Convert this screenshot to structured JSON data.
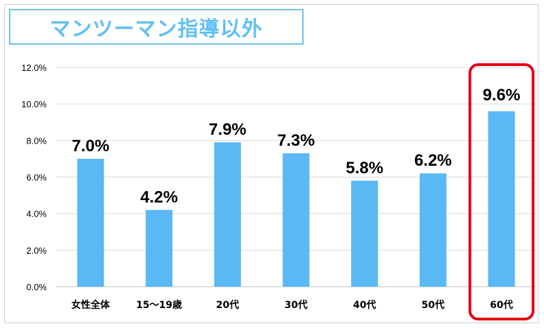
{
  "title": "マンツーマン指導以外",
  "chart_data": {
    "type": "bar",
    "categories": [
      "女性全体",
      "15～19歳",
      "20代",
      "30代",
      "40代",
      "50代",
      "60代"
    ],
    "values": [
      7.0,
      4.2,
      7.9,
      7.3,
      5.8,
      6.2,
      9.6
    ],
    "data_labels": [
      "7.0%",
      "4.2%",
      "7.9%",
      "7.3%",
      "5.8%",
      "6.2%",
      "9.6%"
    ],
    "y_ticks": [
      "0.0%",
      "2.0%",
      "4.0%",
      "6.0%",
      "8.0%",
      "10.0%",
      "12.0%"
    ],
    "ylim": [
      0,
      12
    ],
    "grid": true,
    "highlighted_category": "60代",
    "colors": {
      "bar": "#5ab8f5",
      "highlight_label": "#5ab8f5",
      "highlight_box": "#e60012",
      "grid": "#d9d9d9",
      "title": "#5ec0f5",
      "title_border": "#6ec1ea"
    }
  }
}
